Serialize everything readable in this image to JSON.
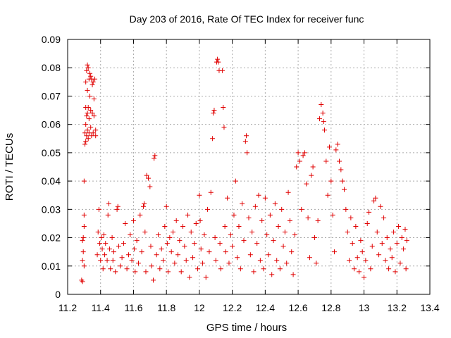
{
  "chart_data": {
    "type": "scatter",
    "title": "Day 203 of 2016, Rate Of TEC Index for receiver func",
    "xlabel": "GPS time / hours",
    "ylabel": "ROTI / TECUs",
    "xlim": [
      11.2,
      13.4
    ],
    "ylim": [
      0,
      0.09
    ],
    "xticks": [
      11.2,
      11.4,
      11.6,
      11.8,
      12,
      12.2,
      12.4,
      12.6,
      12.8,
      13,
      13.2,
      13.4
    ],
    "xtick_labels": [
      "11.2",
      "11.4",
      "11.6",
      "11.8",
      "12",
      "12.2",
      "12.4",
      "12.6",
      "12.8",
      "13",
      "13.2",
      "13.4"
    ],
    "yticks": [
      0,
      0.01,
      0.02,
      0.03,
      0.04,
      0.05,
      0.06,
      0.07,
      0.08,
      0.09
    ],
    "ytick_labels": [
      "0",
      "0.01",
      "0.02",
      "0.03",
      "0.04",
      "0.05",
      "0.06",
      "0.07",
      "0.08",
      "0.09"
    ],
    "grid": true,
    "marker": "+",
    "color": "#e00000",
    "series": [
      {
        "points": [
          [
            11.285,
            0.005
          ],
          [
            11.29,
            0.0045
          ],
          [
            11.29,
            0.012
          ],
          [
            11.29,
            0.019
          ],
          [
            11.295,
            0.02
          ],
          [
            11.295,
            0.015
          ],
          [
            11.3,
            0.01
          ],
          [
            11.3,
            0.024
          ],
          [
            11.3,
            0.028
          ],
          [
            11.3,
            0.04
          ],
          [
            11.305,
            0.053
          ],
          [
            11.305,
            0.057
          ],
          [
            11.31,
            0.054
          ],
          [
            11.31,
            0.06
          ],
          [
            11.31,
            0.066
          ],
          [
            11.31,
            0.075
          ],
          [
            11.315,
            0.079
          ],
          [
            11.315,
            0.063
          ],
          [
            11.315,
            0.056
          ],
          [
            11.32,
            0.081
          ],
          [
            11.32,
            0.064
          ],
          [
            11.32,
            0.058
          ],
          [
            11.32,
            0.072
          ],
          [
            11.325,
            0.08
          ],
          [
            11.325,
            0.066
          ],
          [
            11.325,
            0.055
          ],
          [
            11.33,
            0.076
          ],
          [
            11.33,
            0.062
          ],
          [
            11.33,
            0.057
          ],
          [
            11.335,
            0.078
          ],
          [
            11.335,
            0.07
          ],
          [
            11.34,
            0.077
          ],
          [
            11.34,
            0.065
          ],
          [
            11.34,
            0.059
          ],
          [
            11.345,
            0.076
          ],
          [
            11.345,
            0.056
          ],
          [
            11.35,
            0.074
          ],
          [
            11.35,
            0.064
          ],
          [
            11.355,
            0.075
          ],
          [
            11.355,
            0.057
          ],
          [
            11.36,
            0.069
          ],
          [
            11.36,
            0.063
          ],
          [
            11.365,
            0.076
          ],
          [
            11.37,
            0.058
          ],
          [
            11.37,
            0.056
          ],
          [
            11.38,
            0.014
          ],
          [
            11.385,
            0.022
          ],
          [
            11.39,
            0.03
          ],
          [
            11.395,
            0.018
          ],
          [
            11.4,
            0.012
          ],
          [
            11.405,
            0.02
          ],
          [
            11.41,
            0.016
          ],
          [
            11.415,
            0.009
          ],
          [
            11.42,
            0.021
          ],
          [
            11.425,
            0.014
          ],
          [
            11.43,
            0.018
          ],
          [
            11.44,
            0.012
          ],
          [
            11.445,
            0.028
          ],
          [
            11.45,
            0.032
          ],
          [
            11.455,
            0.016
          ],
          [
            11.46,
            0.009
          ],
          [
            11.47,
            0.02
          ],
          [
            11.475,
            0.012
          ],
          [
            11.48,
            0.015
          ],
          [
            11.49,
            0.008
          ],
          [
            11.5,
            0.03
          ],
          [
            11.505,
            0.031
          ],
          [
            11.51,
            0.017
          ],
          [
            11.52,
            0.01
          ],
          [
            11.53,
            0.013
          ],
          [
            11.54,
            0.018
          ],
          [
            11.55,
            0.025
          ],
          [
            11.56,
            0.009
          ],
          [
            11.57,
            0.014
          ],
          [
            11.58,
            0.021
          ],
          [
            11.59,
            0.012
          ],
          [
            11.6,
            0.026
          ],
          [
            11.605,
            0.016
          ],
          [
            11.61,
            0.008
          ],
          [
            11.62,
            0.019
          ],
          [
            11.63,
            0.011
          ],
          [
            11.64,
            0.028
          ],
          [
            11.65,
            0.015
          ],
          [
            11.66,
            0.031
          ],
          [
            11.665,
            0.032
          ],
          [
            11.67,
            0.022
          ],
          [
            11.675,
            0.008
          ],
          [
            11.68,
            0.042
          ],
          [
            11.69,
            0.041
          ],
          [
            11.7,
            0.038
          ],
          [
            11.705,
            0.017
          ],
          [
            11.71,
            0.01
          ],
          [
            11.72,
            0.005
          ],
          [
            11.725,
            0.048
          ],
          [
            11.73,
            0.049
          ],
          [
            11.74,
            0.014
          ],
          [
            11.75,
            0.021
          ],
          [
            11.76,
            0.009
          ],
          [
            11.77,
            0.016
          ],
          [
            11.78,
            0.012
          ],
          [
            11.79,
            0.024
          ],
          [
            11.8,
            0.031
          ],
          [
            11.805,
            0.018
          ],
          [
            11.81,
            0.008
          ],
          [
            11.82,
            0.02
          ],
          [
            11.83,
            0.015
          ],
          [
            11.84,
            0.022
          ],
          [
            11.85,
            0.011
          ],
          [
            11.86,
            0.026
          ],
          [
            11.87,
            0.014
          ],
          [
            11.88,
            0.019
          ],
          [
            11.89,
            0.008
          ],
          [
            11.9,
            0.024
          ],
          [
            11.91,
            0.017
          ],
          [
            11.92,
            0.012
          ],
          [
            11.93,
            0.028
          ],
          [
            11.94,
            0.006
          ],
          [
            11.95,
            0.022
          ],
          [
            11.96,
            0.013
          ],
          [
            11.97,
            0.018
          ],
          [
            11.98,
            0.025
          ],
          [
            11.99,
            0.009
          ],
          [
            12.0,
            0.035
          ],
          [
            12.005,
            0.026
          ],
          [
            12.01,
            0.016
          ],
          [
            12.02,
            0.011
          ],
          [
            12.03,
            0.021
          ],
          [
            12.04,
            0.006
          ],
          [
            12.05,
            0.03
          ],
          [
            12.06,
            0.015
          ],
          [
            12.07,
            0.036
          ],
          [
            12.08,
            0.055
          ],
          [
            12.085,
            0.064
          ],
          [
            12.09,
            0.065
          ],
          [
            12.095,
            0.02
          ],
          [
            12.1,
            0.012
          ],
          [
            12.105,
            0.082
          ],
          [
            12.11,
            0.083
          ],
          [
            12.115,
            0.082
          ],
          [
            12.12,
            0.079
          ],
          [
            12.125,
            0.018
          ],
          [
            12.13,
            0.009
          ],
          [
            12.14,
            0.079
          ],
          [
            12.145,
            0.066
          ],
          [
            12.15,
            0.059
          ],
          [
            12.155,
            0.024
          ],
          [
            12.16,
            0.015
          ],
          [
            12.17,
            0.034
          ],
          [
            12.18,
            0.011
          ],
          [
            12.19,
            0.021
          ],
          [
            12.2,
            0.017
          ],
          [
            12.21,
            0.028
          ],
          [
            12.22,
            0.04
          ],
          [
            12.23,
            0.013
          ],
          [
            12.24,
            0.024
          ],
          [
            12.25,
            0.009
          ],
          [
            12.26,
            0.032
          ],
          [
            12.27,
            0.019
          ],
          [
            12.28,
            0.054
          ],
          [
            12.285,
            0.056
          ],
          [
            12.29,
            0.05
          ],
          [
            12.3,
            0.027
          ],
          [
            12.31,
            0.014
          ],
          [
            12.32,
            0.022
          ],
          [
            12.33,
            0.008
          ],
          [
            12.34,
            0.031
          ],
          [
            12.35,
            0.018
          ],
          [
            12.36,
            0.035
          ],
          [
            12.37,
            0.012
          ],
          [
            12.38,
            0.026
          ],
          [
            12.39,
            0.009
          ],
          [
            12.4,
            0.034
          ],
          [
            12.41,
            0.021
          ],
          [
            12.42,
            0.014
          ],
          [
            12.43,
            0.028
          ],
          [
            12.44,
            0.007
          ],
          [
            12.45,
            0.019
          ],
          [
            12.46,
            0.032
          ],
          [
            12.47,
            0.012
          ],
          [
            12.48,
            0.024
          ],
          [
            12.49,
            0.009
          ],
          [
            12.5,
            0.03
          ],
          [
            12.51,
            0.017
          ],
          [
            12.52,
            0.022
          ],
          [
            12.53,
            0.011
          ],
          [
            12.54,
            0.036
          ],
          [
            12.55,
            0.026
          ],
          [
            12.56,
            0.015
          ],
          [
            12.57,
            0.007
          ],
          [
            12.58,
            0.021
          ],
          [
            12.59,
            0.045
          ],
          [
            12.6,
            0.05
          ],
          [
            12.61,
            0.047
          ],
          [
            12.62,
            0.03
          ],
          [
            12.63,
            0.049
          ],
          [
            12.64,
            0.05
          ],
          [
            12.65,
            0.039
          ],
          [
            12.66,
            0.027
          ],
          [
            12.67,
            0.013
          ],
          [
            12.68,
            0.042
          ],
          [
            12.69,
            0.045
          ],
          [
            12.7,
            0.02
          ],
          [
            12.71,
            0.011
          ],
          [
            12.72,
            0.026
          ],
          [
            12.73,
            0.062
          ],
          [
            12.74,
            0.067
          ],
          [
            12.75,
            0.064
          ],
          [
            12.755,
            0.061
          ],
          [
            12.76,
            0.058
          ],
          [
            12.77,
            0.047
          ],
          [
            12.78,
            0.035
          ],
          [
            12.79,
            0.052
          ],
          [
            12.8,
            0.04
          ],
          [
            12.81,
            0.028
          ],
          [
            12.82,
            0.015
          ],
          [
            12.83,
            0.051
          ],
          [
            12.84,
            0.053
          ],
          [
            12.85,
            0.047
          ],
          [
            12.86,
            0.044
          ],
          [
            12.87,
            0.04
          ],
          [
            12.88,
            0.037
          ],
          [
            12.89,
            0.03
          ],
          [
            12.9,
            0.022
          ],
          [
            12.91,
            0.012
          ],
          [
            12.92,
            0.027
          ],
          [
            12.93,
            0.018
          ],
          [
            12.94,
            0.009
          ],
          [
            12.95,
            0.024
          ],
          [
            12.96,
            0.013
          ],
          [
            12.97,
            0.008
          ],
          [
            12.98,
            0.019
          ],
          [
            12.99,
            0.015
          ],
          [
            13.0,
            0.006
          ],
          [
            13.01,
            0.012
          ],
          [
            13.02,
            0.025
          ],
          [
            13.03,
            0.029
          ],
          [
            13.04,
            0.009
          ],
          [
            13.05,
            0.017
          ],
          [
            13.06,
            0.033
          ],
          [
            13.07,
            0.034
          ],
          [
            13.08,
            0.022
          ],
          [
            13.09,
            0.014
          ],
          [
            13.1,
            0.031
          ],
          [
            13.11,
            0.018
          ],
          [
            13.12,
            0.027
          ],
          [
            13.13,
            0.012
          ],
          [
            13.14,
            0.02
          ],
          [
            13.15,
            0.009
          ],
          [
            13.16,
            0.016
          ],
          [
            13.17,
            0.013
          ],
          [
            13.18,
            0.022
          ],
          [
            13.19,
            0.008
          ],
          [
            13.2,
            0.018
          ],
          [
            13.21,
            0.024
          ],
          [
            13.22,
            0.011
          ],
          [
            13.23,
            0.02
          ],
          [
            13.24,
            0.016
          ],
          [
            13.25,
            0.023
          ],
          [
            13.255,
            0.009
          ],
          [
            13.26,
            0.019
          ]
        ]
      }
    ]
  }
}
